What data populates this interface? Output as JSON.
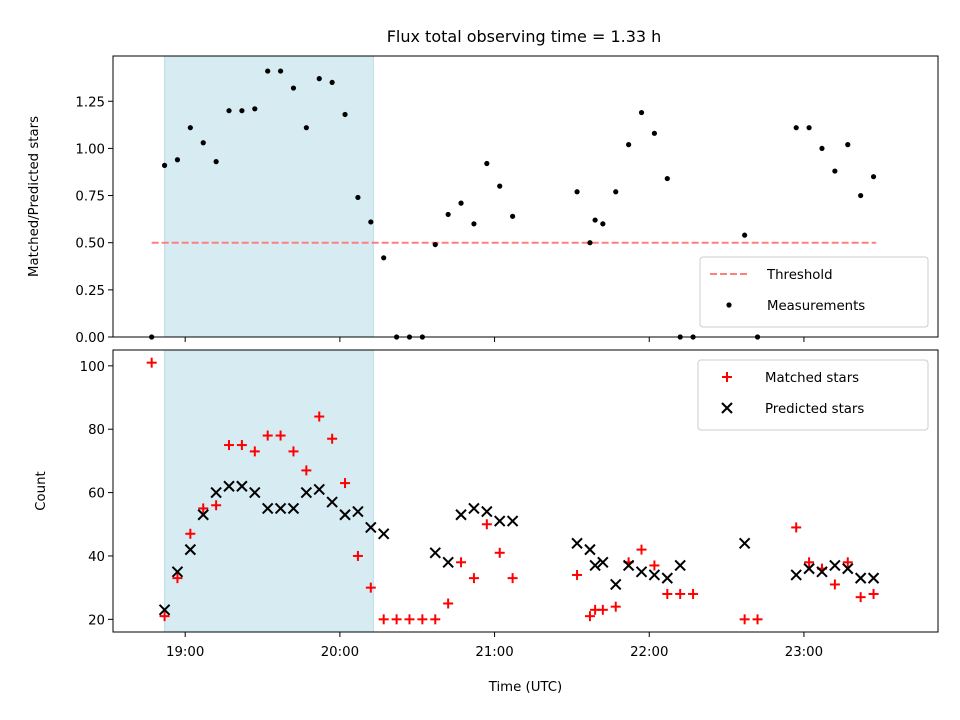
{
  "title": "Flux total observing time = 1.33 h",
  "colors": {
    "shade": "#add8e6",
    "threshold": "#ff7f7f",
    "measurement": "#000000",
    "matched": "#ff0000",
    "predicted": "#000000"
  },
  "chart_data": [
    {
      "type": "scatter",
      "ylabel": "Matched/Predicted stars",
      "xlabel": "",
      "xlim": [
        "18:32",
        "23:52"
      ],
      "ylim": [
        0,
        1.49
      ],
      "yticks": [
        0.0,
        0.25,
        0.5,
        0.75,
        1.0,
        1.25
      ],
      "ytick_labels": [
        "0.00",
        "0.25",
        "0.50",
        "0.75",
        "1.00",
        "1.25"
      ],
      "xticks": [
        "19:00",
        "20:00",
        "21:00",
        "22:00",
        "23:00"
      ],
      "shaded_span": [
        "18:52",
        "20:13"
      ],
      "legend_position": "lower-right",
      "threshold": {
        "name": "Threshold",
        "y": 0.5,
        "x": [
          "18:47",
          "23:28"
        ]
      },
      "series": [
        {
          "name": "Measurements",
          "marker": "dot",
          "x": [
            "18:47",
            "18:52",
            "18:57",
            "19:02",
            "19:07",
            "19:12",
            "19:17",
            "19:22",
            "19:27",
            "19:32",
            "19:37",
            "19:42",
            "19:47",
            "19:52",
            "19:57",
            "20:02",
            "20:07",
            "20:12",
            "20:17",
            "20:22",
            "20:27",
            "20:32",
            "20:37",
            "20:42",
            "20:47",
            "20:52",
            "20:57",
            "21:02",
            "21:07",
            "21:32",
            "21:37",
            "21:39",
            "21:42",
            "21:47",
            "21:52",
            "21:57",
            "22:02",
            "22:07",
            "22:12",
            "22:17",
            "22:37",
            "22:42",
            "22:57",
            "23:02",
            "23:07",
            "23:12",
            "23:17",
            "23:22",
            "23:27"
          ],
          "y": [
            0.0,
            0.91,
            0.94,
            1.11,
            1.03,
            0.93,
            1.2,
            1.2,
            1.21,
            1.41,
            1.41,
            1.32,
            1.11,
            1.37,
            1.35,
            1.18,
            0.74,
            0.61,
            0.42,
            0.0,
            0.0,
            0.0,
            0.49,
            0.65,
            0.71,
            0.6,
            0.92,
            0.8,
            0.64,
            0.77,
            0.5,
            0.62,
            0.6,
            0.77,
            1.02,
            1.19,
            1.08,
            0.84,
            0.0,
            0.0,
            0.54,
            0.0,
            1.11,
            1.11,
            1.0,
            0.88,
            1.02,
            0.75,
            0.85
          ]
        }
      ]
    },
    {
      "type": "scatter",
      "ylabel": "Count",
      "xlabel": "Time (UTC)",
      "xlim": [
        "18:32",
        "23:52"
      ],
      "ylim": [
        16,
        105
      ],
      "yticks": [
        20,
        40,
        60,
        80,
        100
      ],
      "ytick_labels": [
        "20",
        "40",
        "60",
        "80",
        "100"
      ],
      "xticks": [
        "19:00",
        "20:00",
        "21:00",
        "22:00",
        "23:00"
      ],
      "xtick_labels": [
        "19:00",
        "20:00",
        "21:00",
        "22:00",
        "23:00"
      ],
      "shaded_span": [
        "18:52",
        "20:13"
      ],
      "legend_position": "upper-right",
      "series": [
        {
          "name": "Matched stars",
          "marker": "plus",
          "x": [
            "18:47",
            "18:52",
            "18:57",
            "19:02",
            "19:07",
            "19:12",
            "19:17",
            "19:22",
            "19:27",
            "19:32",
            "19:37",
            "19:42",
            "19:47",
            "19:52",
            "19:57",
            "20:02",
            "20:07",
            "20:12",
            "20:17",
            "20:22",
            "20:27",
            "20:32",
            "20:37",
            "20:42",
            "20:47",
            "20:52",
            "20:57",
            "21:02",
            "21:07",
            "21:32",
            "21:37",
            "21:39",
            "21:42",
            "21:47",
            "21:52",
            "21:57",
            "22:02",
            "22:07",
            "22:12",
            "22:17",
            "22:37",
            "22:42",
            "22:57",
            "23:02",
            "23:07",
            "23:12",
            "23:17",
            "23:22",
            "23:27"
          ],
          "y": [
            101,
            21,
            33,
            47,
            55,
            56,
            75,
            75,
            73,
            78,
            78,
            73,
            67,
            84,
            77,
            63,
            40,
            30,
            20,
            20,
            20,
            20,
            20,
            25,
            38,
            33,
            50,
            41,
            33,
            34,
            21,
            23,
            23,
            24,
            38,
            42,
            37,
            28,
            28,
            28,
            20,
            20,
            49,
            38,
            36,
            31,
            38,
            27,
            28
          ]
        },
        {
          "name": "Predicted stars",
          "marker": "x",
          "x": [
            "18:52",
            "18:57",
            "19:02",
            "19:07",
            "19:12",
            "19:17",
            "19:22",
            "19:27",
            "19:32",
            "19:37",
            "19:42",
            "19:47",
            "19:52",
            "19:57",
            "20:02",
            "20:07",
            "20:12",
            "20:17",
            "20:37",
            "20:42",
            "20:47",
            "20:52",
            "20:57",
            "21:02",
            "21:07",
            "21:32",
            "21:37",
            "21:39",
            "21:42",
            "21:47",
            "21:52",
            "21:57",
            "22:02",
            "22:07",
            "22:12",
            "22:37",
            "22:57",
            "23:02",
            "23:07",
            "23:12",
            "23:17",
            "23:22",
            "23:27"
          ],
          "y": [
            23,
            35,
            42,
            53,
            60,
            62,
            62,
            60,
            55,
            55,
            55,
            60,
            61,
            57,
            53,
            54,
            49,
            47,
            41,
            38,
            53,
            55,
            54,
            51,
            51,
            44,
            42,
            37,
            38,
            31,
            37,
            35,
            34,
            33,
            37,
            44,
            34,
            36,
            35,
            37,
            36,
            33,
            33
          ]
        }
      ]
    }
  ]
}
